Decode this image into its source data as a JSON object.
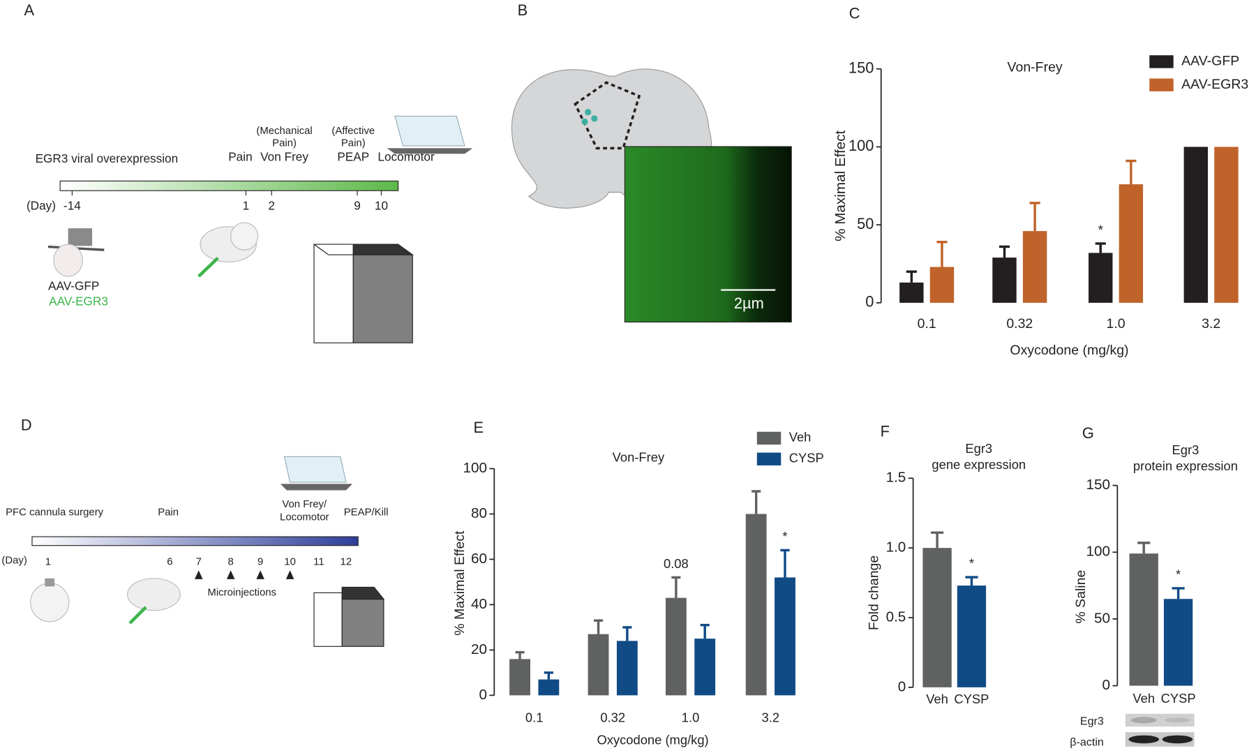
{
  "panel_labels": [
    "A",
    "B",
    "C",
    "D",
    "E",
    "F",
    "G"
  ],
  "timeline_a": {
    "start_label": "EGR3 viral overexpression",
    "pain": "Pain",
    "mechanical_note": [
      "(Mechanical",
      "Pain)"
    ],
    "von_frey": "Von Frey",
    "affective_note": [
      "(Affective",
      "Pain)"
    ],
    "peap": "PEAP",
    "locomotor": "Locomotor",
    "day_label": "(Day)",
    "days": [
      "-14",
      "1",
      "2",
      "9",
      "10"
    ],
    "vectors": [
      "AAV-GFP",
      "AAV-EGR3"
    ]
  },
  "panel_b": {
    "scale_bar": "2µm"
  },
  "timeline_d": {
    "surgery": "PFC cannula surgery",
    "pain": "Pain",
    "von_frey_locomotor": [
      "Von Frey/",
      "Locomotor"
    ],
    "peap_kill": "PEAP/Kill",
    "day_label": "(Day)",
    "days": [
      "1",
      "6",
      "7",
      "8",
      "9",
      "10",
      "11",
      "12"
    ],
    "microinjections": "Microinjections"
  },
  "blot": {
    "rows": [
      "Egr3",
      "β-actin"
    ]
  },
  "chart_data": [
    {
      "type": "bar",
      "title": "Von-Frey",
      "x_label": "Oxycodone (mg/kg)",
      "y_label": "% Maximal Effect",
      "categories": [
        "0.1",
        "0.32",
        "1.0",
        "3.2"
      ],
      "series": [
        {
          "name": "AAV-GFP",
          "color": "#231f20",
          "values": [
            13,
            29,
            32,
            100
          ],
          "errors": [
            7,
            7,
            6,
            null
          ],
          "significance": [
            null,
            null,
            "*",
            null
          ]
        },
        {
          "name": "AAV-EGR3",
          "color": "#c0632a",
          "values": [
            23,
            46,
            76,
            100
          ],
          "errors": [
            16,
            18,
            15,
            null
          ],
          "significance": [
            null,
            null,
            null,
            null
          ]
        }
      ],
      "ylim": [
        0,
        150
      ],
      "yticks": [
        0,
        50,
        100,
        150
      ]
    },
    {
      "type": "bar",
      "title": "Von-Frey",
      "x_label": "Oxycodone (mg/kg)",
      "y_label": "% Maximal Effect",
      "categories": [
        "0.1",
        "0.32",
        "1.0",
        "3.2"
      ],
      "series": [
        {
          "name": "Veh",
          "color": "#5f6261",
          "values": [
            16,
            27,
            43,
            80
          ],
          "errors": [
            3,
            6,
            9,
            10
          ],
          "significance": [
            null,
            null,
            "0.08",
            null
          ]
        },
        {
          "name": "CYSP",
          "color": "#114b86",
          "values": [
            7,
            24,
            25,
            52
          ],
          "errors": [
            3,
            6,
            6,
            12
          ],
          "significance": [
            null,
            null,
            null,
            "*"
          ]
        }
      ],
      "ylim": [
        0,
        100
      ],
      "yticks": [
        0,
        20,
        40,
        60,
        80,
        100
      ]
    },
    {
      "type": "bar",
      "title": "Egr3",
      "subtitle": "gene expression",
      "y_label": "Fold change",
      "categories": [
        "Veh",
        "CYSP"
      ],
      "values": [
        1.0,
        0.73
      ],
      "errors": [
        0.11,
        0.06
      ],
      "colors": [
        "#5f6261",
        "#114b86"
      ],
      "significance": [
        null,
        "*"
      ],
      "ylim": [
        0,
        1.5
      ],
      "yticks": [
        0,
        0.5,
        {
          "value": 1,
          "label": "1.0"
        },
        1.5
      ]
    },
    {
      "type": "bar",
      "title": "Egr3",
      "subtitle": "protein expression",
      "y_label": "% Saline",
      "categories": [
        "Veh",
        "CYSP"
      ],
      "values": [
        99,
        65
      ],
      "errors": [
        8,
        8
      ],
      "colors": [
        "#5f6261",
        "#114b86"
      ],
      "significance": [
        null,
        "*"
      ],
      "ylim": [
        0,
        150
      ],
      "yticks": [
        0,
        50,
        100,
        150
      ]
    }
  ]
}
